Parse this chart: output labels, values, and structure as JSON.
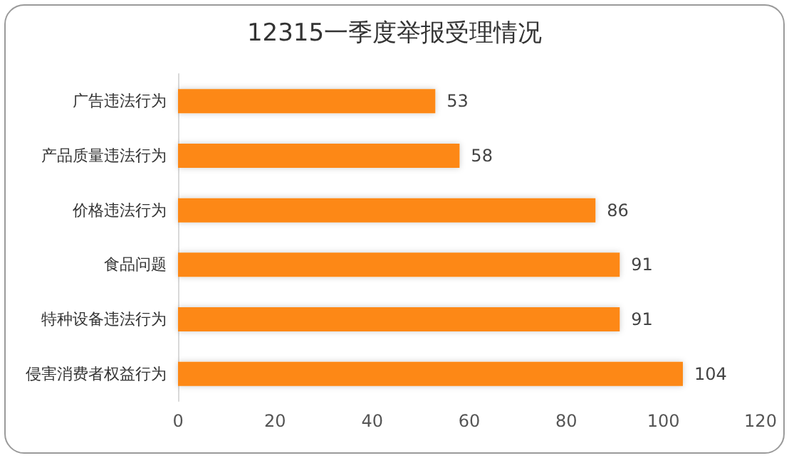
{
  "chart_data": {
    "type": "bar",
    "orientation": "horizontal",
    "title": "12315一季度举报受理情况",
    "categories": [
      "广告违法行为",
      "产品质量违法行为",
      "价格违法行为",
      "食品问题",
      "特种设备违法行为",
      "侵害消费者权益行为"
    ],
    "values": [
      53,
      58,
      86,
      91,
      91,
      104
    ],
    "color": "#fd8813",
    "xlim": [
      0,
      120
    ],
    "xticks": [
      0,
      20,
      40,
      60,
      80,
      100,
      120
    ],
    "grid": false,
    "data_labels": true
  }
}
